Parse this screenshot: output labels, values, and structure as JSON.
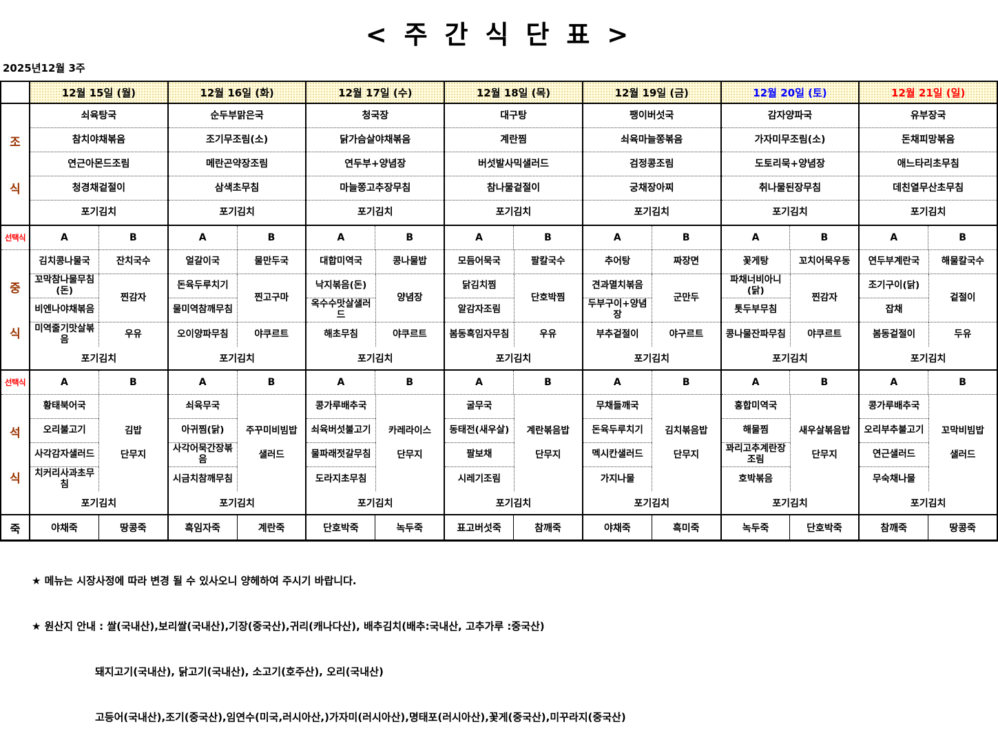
{
  "title": "< 주 간 식 단 표 >",
  "week_label": "2025년12월 3주",
  "colors": {
    "weekday_header": "#000000",
    "saturday_header": "#0000FF",
    "sunday_header": "#FF0000",
    "meal_label": "#993300",
    "choice_label": "#FF0000",
    "header_background": "#FFFDDE"
  },
  "table": {
    "choice_label": "선택식",
    "choice_headers": [
      "A",
      "B"
    ],
    "days": [
      {
        "label": "12월 15일 (월)",
        "color": "#000000"
      },
      {
        "label": "12월 16일 (화)",
        "color": "#000000"
      },
      {
        "label": "12월 17일 (수)",
        "color": "#000000"
      },
      {
        "label": "12월 18일 (목)",
        "color": "#000000"
      },
      {
        "label": "12월 19일 (금)",
        "color": "#000000"
      },
      {
        "label": "12월 20일 (토)",
        "color": "#0000FF"
      },
      {
        "label": "12월 21일 (일)",
        "color": "#FF0000"
      }
    ],
    "sections": [
      {
        "id": "breakfast",
        "type": "simple",
        "label": "조식",
        "label_color": "#993300",
        "days": [
          [
            "쇠육탕국",
            "참치야채볶음",
            "연근아몬드조림",
            "청경채겉절이",
            "포기김치"
          ],
          [
            "순두부맑은국",
            "조기무조림(소)",
            "메란곤약장조림",
            "삼색초무침",
            "포기김치"
          ],
          [
            "청국장",
            "닭가슴살야채볶음",
            "연두부+양념장",
            "마늘쫑고추장무침",
            "포기김치"
          ],
          [
            "대구탕",
            "계란찜",
            "버섯발사믹샐러드",
            "참나물겉절이",
            "포기김치"
          ],
          [
            "팽이버섯국",
            "쇠육마늘쫑볶음",
            "검정콩조림",
            "궁채장아찌",
            "포기김치"
          ],
          [
            "감자양파국",
            "가자미무조림(소)",
            "도토리묵+양념장",
            "취나물된장무침",
            "포기김치"
          ],
          [
            "유부장국",
            "돈채피망볶음",
            "애느타리초무침",
            "데친열무산초무침",
            "포기김치"
          ]
        ]
      },
      {
        "id": "lunch",
        "type": "choice",
        "label": "중식",
        "label_color": "#993300",
        "days": [
          {
            "a": [
              "김치콩나물국",
              "꼬막참나물무침(돈)",
              "비엔나야채볶음",
              "미역줄기맛살볶음"
            ],
            "b": [
              {
                "t": "잔치국수"
              },
              {
                "t": "찐감자",
                "r": 2
              },
              {
                "t": "우유"
              }
            ],
            "kimchi": "포기김치"
          },
          {
            "a": [
              "얼갈이국",
              "돈육두루치기",
              "물미역참깨무침",
              "오이양파무침"
            ],
            "b": [
              {
                "t": "물만두국"
              },
              {
                "t": "찐고구마",
                "r": 2
              },
              {
                "t": "야쿠르트"
              }
            ],
            "kimchi": "포기김치"
          },
          {
            "a": [
              "대합미역국",
              "낙지볶음(돈)",
              "옥수수맛살샐러드",
              "해초무침"
            ],
            "b": [
              {
                "t": "콩나물밥"
              },
              {
                "t": "양념장",
                "r": 2
              },
              {
                "t": "야쿠르트"
              }
            ],
            "kimchi": "포기김치"
          },
          {
            "a": [
              "모듬어묵국",
              "닭김치찜",
              "알감자조림",
              "봄동흑임자무침"
            ],
            "b": [
              {
                "t": "팔칼국수"
              },
              {
                "t": "단호박찜",
                "r": 2
              },
              {
                "t": "우유"
              }
            ],
            "kimchi": "포기김치"
          },
          {
            "a": [
              "추어탕",
              "견과멸치볶음",
              "두부구이+양념장",
              "부추겉절이"
            ],
            "b": [
              {
                "t": "짜장면"
              },
              {
                "t": "군만두",
                "r": 2
              },
              {
                "t": "야구르트"
              }
            ],
            "kimchi": "포기김치"
          },
          {
            "a": [
              "꽃게탕",
              "파채너비아니(닭)",
              "톳두부무침",
              "콩나물잔파무침"
            ],
            "b": [
              {
                "t": "꼬치어묵우동"
              },
              {
                "t": "찐감자",
                "r": 2
              },
              {
                "t": "야쿠르트"
              }
            ],
            "kimchi": "포기김치"
          },
          {
            "a": [
              "연두부계란국",
              "조기구이(닭)",
              "잡채",
              "봄동겉절이"
            ],
            "b": [
              {
                "t": "해물칼국수"
              },
              {
                "t": "겉절이",
                "r": 2
              },
              {
                "t": "두유"
              }
            ],
            "kimchi": "포기김치"
          }
        ]
      },
      {
        "id": "dinner",
        "type": "choice",
        "label": "석식",
        "label_color": "#993300",
        "days": [
          {
            "a": [
              "황태북어국",
              "오리불고기",
              "사각감자샐러드",
              "치커리사과초무침"
            ],
            "b": [
              {
                "t": "",
                "nb": true
              },
              {
                "t": "김밥",
                "nb": true
              },
              {
                "t": "단무지",
                "nb": true
              },
              {
                "t": ""
              }
            ],
            "kimchi": "포기김치"
          },
          {
            "a": [
              "쇠육무국",
              "아귀찜(닭)",
              "사각어묵간장볶음",
              "시금치참깨무침"
            ],
            "b": [
              {
                "t": "",
                "nb": true
              },
              {
                "t": "주꾸미비빔밥",
                "nb": true
              },
              {
                "t": "샐러드",
                "nb": true
              },
              {
                "t": ""
              }
            ],
            "kimchi": "포기김치"
          },
          {
            "a": [
              "콩가루배추국",
              "쇠육버섯불고기",
              "물파래젓갈무침",
              "도라지초무침"
            ],
            "b": [
              {
                "t": "",
                "nb": true
              },
              {
                "t": "카레라이스",
                "nb": true
              },
              {
                "t": "단무지",
                "nb": true
              },
              {
                "t": ""
              }
            ],
            "kimchi": "포기김치"
          },
          {
            "a": [
              "굴무국",
              "동태전(새우살)",
              "팔보채",
              "시레기조림"
            ],
            "b": [
              {
                "t": "",
                "nb": true
              },
              {
                "t": "계란볶음밥",
                "nb": true
              },
              {
                "t": "단무지",
                "nb": true
              },
              {
                "t": ""
              }
            ],
            "kimchi": "포기김치"
          },
          {
            "a": [
              "무채들깨국",
              "돈육두루치기",
              "멕시칸샐러드",
              "가지나물"
            ],
            "b": [
              {
                "t": "",
                "nb": true
              },
              {
                "t": "김치볶음밥",
                "nb": true
              },
              {
                "t": "단무지",
                "nb": true
              },
              {
                "t": ""
              }
            ],
            "kimchi": "포기김치"
          },
          {
            "a": [
              "홍합미역국",
              "해물찜",
              "꽈리고추계란장조림",
              "호박볶음"
            ],
            "b": [
              {
                "t": "",
                "nb": true
              },
              {
                "t": "새우살볶음밥",
                "nb": true
              },
              {
                "t": "단무지",
                "nb": true
              },
              {
                "t": ""
              }
            ],
            "kimchi": "포기김치"
          },
          {
            "a": [
              "콩가루배추국",
              "오리부추불고기",
              "연근샐러드",
              "무숙채나물"
            ],
            "b": [
              {
                "t": "",
                "nb": true
              },
              {
                "t": "꼬막비빔밥",
                "nb": true
              },
              {
                "t": "샐러드",
                "nb": true
              },
              {
                "t": ""
              }
            ],
            "kimchi": "포기김치"
          }
        ]
      },
      {
        "id": "porridge",
        "type": "porridge",
        "label": "죽",
        "label_color": "#000000",
        "days": [
          [
            "야채죽",
            "땅콩죽"
          ],
          [
            "흑임자죽",
            "계란죽"
          ],
          [
            "단호박죽",
            "녹두죽"
          ],
          [
            "표고버섯죽",
            "참깨죽"
          ],
          [
            "야채죽",
            "흑미죽"
          ],
          [
            "녹두죽",
            "단호박죽"
          ],
          [
            "참깨죽",
            "땅콩죽"
          ]
        ]
      }
    ]
  },
  "notes": [
    "★ 메뉴는 시장사정에 따라 변경 될 수 있사오니 양헤하여 주시기 바랍니다.",
    "★ 원산지 안내 : 쌀(국내산),보리쌀(국내산),기장(중국산),귀리(캐나다산), 배추김치(배추:국내산, 고추가루 :중국산)",
    "돼지고기(국내산), 닭고기(국내산), 소고기(호주산), 오리(국내산)",
    "고등어(국내산),조기(중국산),임연수(미국,러시아산,)가자미(러시아산),명태포(러시아산),꽃게(중국산),미꾸라지(중국산)"
  ]
}
